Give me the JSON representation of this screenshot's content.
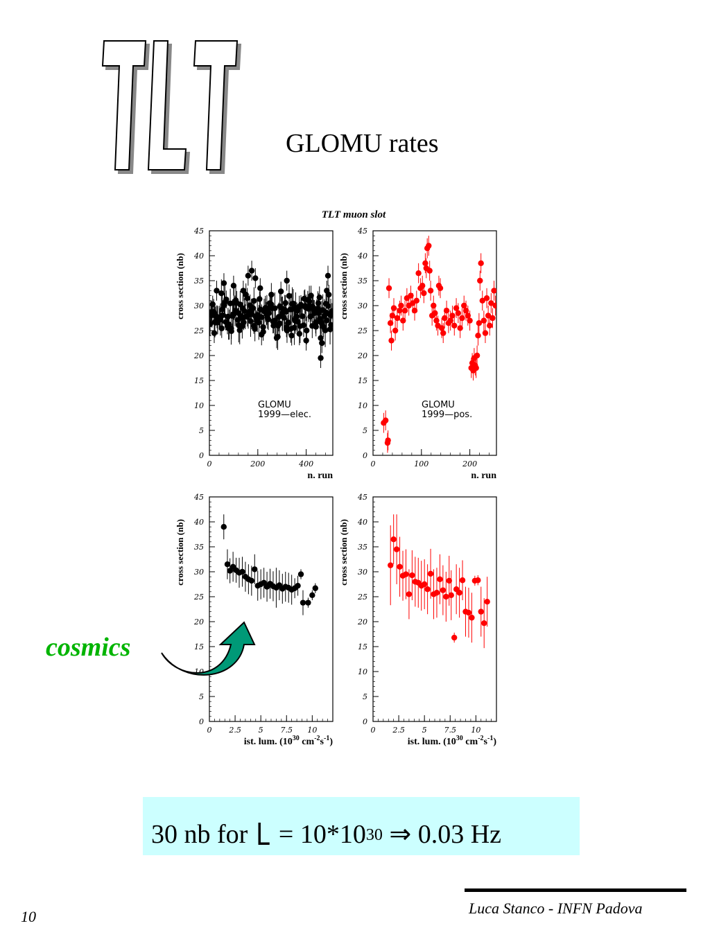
{
  "logo": {
    "text": "TLT"
  },
  "slide": {
    "title": "GLOMU rates",
    "cosmics_label": "cosmics",
    "formula": {
      "prefix": "30 nb for ",
      "symbol": "L",
      "middle": " = 10*10",
      "exponent": "30",
      "arrow": " ⇒ ",
      "result": "0.03 Hz"
    },
    "footer_credit": "Luca Stanco - INFN Padova",
    "page_number": "10"
  },
  "figure": {
    "title": "TLT muon slot"
  },
  "colors": {
    "elec": "#000000",
    "pos": "#ff0000",
    "formula_box": "#ccffff",
    "cosmics_label": "#00b400",
    "arrow_fill": "#009977"
  },
  "chart_data": [
    {
      "type": "scatter",
      "name": "elec-vs-run",
      "annotation": [
        "GLOMU",
        "1999—elec."
      ],
      "xlabel": "n. run",
      "ylabel": "cross section (nb)",
      "xlim": [
        0,
        510
      ],
      "ylim": [
        0,
        45
      ],
      "xticks": [
        0,
        200,
        400
      ],
      "yticks": [
        0,
        5,
        10,
        15,
        20,
        25,
        30,
        35,
        40,
        45
      ],
      "color": "#000000",
      "generated_band": {
        "n": 170,
        "center": 28.5,
        "spread": 3.2,
        "seed": 7
      },
      "points": [
        {
          "x": 20,
          "y": 24.5
        },
        {
          "x": 60,
          "y": 34.5
        },
        {
          "x": 100,
          "y": 34
        },
        {
          "x": 140,
          "y": 33
        },
        {
          "x": 160,
          "y": 36
        },
        {
          "x": 175,
          "y": 37
        },
        {
          "x": 190,
          "y": 35.5
        },
        {
          "x": 210,
          "y": 33.5
        },
        {
          "x": 250,
          "y": 30.5
        },
        {
          "x": 320,
          "y": 35
        },
        {
          "x": 340,
          "y": 24
        },
        {
          "x": 400,
          "y": 23
        },
        {
          "x": 420,
          "y": 32
        },
        {
          "x": 450,
          "y": 30.5
        },
        {
          "x": 460,
          "y": 23.5
        },
        {
          "x": 465,
          "y": 22.5
        },
        {
          "x": 460,
          "y": 19.5
        },
        {
          "x": 490,
          "y": 36
        },
        {
          "x": 485,
          "y": 33
        },
        {
          "x": 30,
          "y": 33
        }
      ]
    },
    {
      "type": "scatter",
      "name": "pos-vs-run",
      "annotation": [
        "GLOMU",
        "1999—pos."
      ],
      "xlabel": "n. run",
      "ylabel": "cross section (nb)",
      "xlim": [
        0,
        255
      ],
      "ylim": [
        0,
        45
      ],
      "xticks": [
        0,
        100,
        200
      ],
      "yticks": [
        0,
        5,
        10,
        15,
        20,
        25,
        30,
        35,
        40,
        45
      ],
      "color": "#ff0000",
      "points": [
        {
          "x": 22,
          "y": 6.5
        },
        {
          "x": 26,
          "y": 7
        },
        {
          "x": 30,
          "y": 2.5
        },
        {
          "x": 31,
          "y": 3
        },
        {
          "x": 33,
          "y": 33.5
        },
        {
          "x": 36,
          "y": 26.5
        },
        {
          "x": 38,
          "y": 23
        },
        {
          "x": 40,
          "y": 28
        },
        {
          "x": 43,
          "y": 29.5
        },
        {
          "x": 46,
          "y": 25
        },
        {
          "x": 50,
          "y": 27.5
        },
        {
          "x": 55,
          "y": 29
        },
        {
          "x": 58,
          "y": 30
        },
        {
          "x": 62,
          "y": 27
        },
        {
          "x": 66,
          "y": 29
        },
        {
          "x": 70,
          "y": 31.5
        },
        {
          "x": 74,
          "y": 30
        },
        {
          "x": 78,
          "y": 32
        },
        {
          "x": 82,
          "y": 30.5
        },
        {
          "x": 86,
          "y": 29
        },
        {
          "x": 90,
          "y": 31
        },
        {
          "x": 94,
          "y": 36.5
        },
        {
          "x": 98,
          "y": 33.5
        },
        {
          "x": 102,
          "y": 34
        },
        {
          "x": 105,
          "y": 32.5
        },
        {
          "x": 108,
          "y": 38.5
        },
        {
          "x": 110,
          "y": 37.5
        },
        {
          "x": 112,
          "y": 41.5
        },
        {
          "x": 115,
          "y": 42
        },
        {
          "x": 117,
          "y": 37
        },
        {
          "x": 119,
          "y": 33
        },
        {
          "x": 122,
          "y": 28
        },
        {
          "x": 125,
          "y": 30
        },
        {
          "x": 128,
          "y": 28.5
        },
        {
          "x": 131,
          "y": 27
        },
        {
          "x": 134,
          "y": 26
        },
        {
          "x": 136,
          "y": 34
        },
        {
          "x": 139,
          "y": 33.5
        },
        {
          "x": 142,
          "y": 25.5
        },
        {
          "x": 145,
          "y": 24.5
        },
        {
          "x": 148,
          "y": 27.5
        },
        {
          "x": 152,
          "y": 29
        },
        {
          "x": 156,
          "y": 26.5
        },
        {
          "x": 160,
          "y": 27
        },
        {
          "x": 164,
          "y": 28
        },
        {
          "x": 168,
          "y": 26
        },
        {
          "x": 172,
          "y": 29.5
        },
        {
          "x": 176,
          "y": 28.5
        },
        {
          "x": 180,
          "y": 25.5
        },
        {
          "x": 184,
          "y": 27.5
        },
        {
          "x": 188,
          "y": 30
        },
        {
          "x": 192,
          "y": 29
        },
        {
          "x": 196,
          "y": 28
        },
        {
          "x": 200,
          "y": 27
        },
        {
          "x": 203,
          "y": 17.5
        },
        {
          "x": 205,
          "y": 18.5
        },
        {
          "x": 207,
          "y": 17
        },
        {
          "x": 209,
          "y": 19.5
        },
        {
          "x": 211,
          "y": 18
        },
        {
          "x": 213,
          "y": 17.5
        },
        {
          "x": 215,
          "y": 20
        },
        {
          "x": 217,
          "y": 24
        },
        {
          "x": 219,
          "y": 26.5
        },
        {
          "x": 221,
          "y": 35
        },
        {
          "x": 223,
          "y": 38.5
        },
        {
          "x": 226,
          "y": 31
        },
        {
          "x": 229,
          "y": 27
        },
        {
          "x": 232,
          "y": 24.5
        },
        {
          "x": 235,
          "y": 31.5
        },
        {
          "x": 238,
          "y": 28
        },
        {
          "x": 241,
          "y": 26
        },
        {
          "x": 244,
          "y": 30.5
        },
        {
          "x": 247,
          "y": 27.5
        },
        {
          "x": 250,
          "y": 33
        },
        {
          "x": 253,
          "y": 30
        }
      ]
    },
    {
      "type": "scatter",
      "name": "elec-vs-lumi",
      "xlabel": "ist. lum. (10^30 cm^-2 s^-1)",
      "xlabel_parts": {
        "base": "ist. lum. (10",
        "exp1": "30",
        "mid": " cm",
        "exp2": "-2",
        "s": "s",
        "exp3": "-1",
        "end": ")"
      },
      "ylabel": "cross section (nb)",
      "xlim": [
        0,
        12
      ],
      "ylim": [
        0,
        45
      ],
      "xticks": [
        0,
        2.5,
        5,
        7.5,
        10
      ],
      "yticks": [
        0,
        5,
        10,
        15,
        20,
        25,
        30,
        35,
        40,
        45
      ],
      "color": "#000000",
      "points": [
        {
          "x": 1.4,
          "y": 39,
          "e": 2.5
        },
        {
          "x": 1.75,
          "y": 31.5,
          "e": 3
        },
        {
          "x": 2.0,
          "y": 30.2,
          "e": 2.5
        },
        {
          "x": 2.3,
          "y": 31,
          "e": 3
        },
        {
          "x": 2.6,
          "y": 30.3,
          "e": 2.5
        },
        {
          "x": 2.9,
          "y": 29.8,
          "e": 3
        },
        {
          "x": 3.2,
          "y": 30,
          "e": 3
        },
        {
          "x": 3.5,
          "y": 29,
          "e": 3
        },
        {
          "x": 3.8,
          "y": 28.5,
          "e": 3
        },
        {
          "x": 4.1,
          "y": 28.2,
          "e": 3
        },
        {
          "x": 4.4,
          "y": 30.5,
          "e": 3
        },
        {
          "x": 4.7,
          "y": 27.2,
          "e": 3
        },
        {
          "x": 5.0,
          "y": 27.5,
          "e": 3
        },
        {
          "x": 5.3,
          "y": 27.8,
          "e": 3
        },
        {
          "x": 5.6,
          "y": 27,
          "e": 3
        },
        {
          "x": 5.9,
          "y": 27.6,
          "e": 3
        },
        {
          "x": 6.2,
          "y": 27.1,
          "e": 3
        },
        {
          "x": 6.5,
          "y": 26.8,
          "e": 4
        },
        {
          "x": 6.8,
          "y": 27.3,
          "e": 3
        },
        {
          "x": 7.1,
          "y": 26.6,
          "e": 3
        },
        {
          "x": 7.4,
          "y": 27,
          "e": 3
        },
        {
          "x": 7.7,
          "y": 26.8,
          "e": 3
        },
        {
          "x": 8.0,
          "y": 26.4,
          "e": 3
        },
        {
          "x": 8.3,
          "y": 26.7,
          "e": 2
        },
        {
          "x": 8.6,
          "y": 27.2,
          "e": 2
        },
        {
          "x": 8.9,
          "y": 29.5,
          "e": 1
        },
        {
          "x": 9.1,
          "y": 23.8,
          "e": 2.5
        },
        {
          "x": 9.6,
          "y": 23.8,
          "e": 1
        },
        {
          "x": 10.0,
          "y": 25.3,
          "e": 1
        },
        {
          "x": 10.3,
          "y": 26.7,
          "e": 1
        }
      ]
    },
    {
      "type": "scatter",
      "name": "pos-vs-lumi",
      "xlabel": "ist. lum. (10^30 cm^-2 s^-1)",
      "xlabel_parts": {
        "base": "ist. lum. (10",
        "exp1": "30",
        "mid": " cm",
        "exp2": "-2",
        "s": "s",
        "exp3": "-1",
        "end": ")"
      },
      "ylabel": "cross section (nb)",
      "xlim": [
        0,
        12
      ],
      "ylim": [
        0,
        45
      ],
      "xticks": [
        0,
        2.5,
        5,
        7.5,
        10
      ],
      "yticks": [
        0,
        5,
        10,
        15,
        20,
        25,
        30,
        35,
        40,
        45
      ],
      "color": "#ff0000",
      "points": [
        {
          "x": 1.7,
          "y": 31.3,
          "e": 8
        },
        {
          "x": 2.0,
          "y": 36.5,
          "e": 5
        },
        {
          "x": 2.3,
          "y": 34.5,
          "e": 7
        },
        {
          "x": 2.6,
          "y": 31,
          "e": 6
        },
        {
          "x": 2.9,
          "y": 29.2,
          "e": 5
        },
        {
          "x": 3.2,
          "y": 29.5,
          "e": 5
        },
        {
          "x": 3.5,
          "y": 25.5,
          "e": 5
        },
        {
          "x": 3.8,
          "y": 29.3,
          "e": 5
        },
        {
          "x": 4.1,
          "y": 28,
          "e": 5
        },
        {
          "x": 4.4,
          "y": 27.8,
          "e": 5
        },
        {
          "x": 4.7,
          "y": 27.2,
          "e": 5
        },
        {
          "x": 5.0,
          "y": 27.5,
          "e": 5
        },
        {
          "x": 5.3,
          "y": 26.5,
          "e": 5
        },
        {
          "x": 5.6,
          "y": 29.6,
          "e": 5
        },
        {
          "x": 5.9,
          "y": 25.5,
          "e": 5
        },
        {
          "x": 6.2,
          "y": 25.8,
          "e": 5
        },
        {
          "x": 6.5,
          "y": 28.5,
          "e": 5
        },
        {
          "x": 6.8,
          "y": 26.3,
          "e": 5
        },
        {
          "x": 7.1,
          "y": 25,
          "e": 5
        },
        {
          "x": 7.4,
          "y": 28.2,
          "e": 5
        },
        {
          "x": 7.6,
          "y": 25.3,
          "e": 5
        },
        {
          "x": 7.9,
          "y": 16.8,
          "e": 1
        },
        {
          "x": 8.1,
          "y": 26.5,
          "e": 5
        },
        {
          "x": 8.4,
          "y": 25.8,
          "e": 5
        },
        {
          "x": 8.7,
          "y": 28.3,
          "e": 4
        },
        {
          "x": 9.0,
          "y": 22,
          "e": 5
        },
        {
          "x": 9.3,
          "y": 21.8,
          "e": 5
        },
        {
          "x": 9.6,
          "y": 20.8,
          "e": 5
        },
        {
          "x": 9.9,
          "y": 28.2,
          "e": 1
        },
        {
          "x": 10.2,
          "y": 28.3,
          "e": 1
        },
        {
          "x": 10.5,
          "y": 22,
          "e": 5
        },
        {
          "x": 10.8,
          "y": 19.7,
          "e": 5
        },
        {
          "x": 11.1,
          "y": 24,
          "e": 5
        }
      ]
    }
  ]
}
